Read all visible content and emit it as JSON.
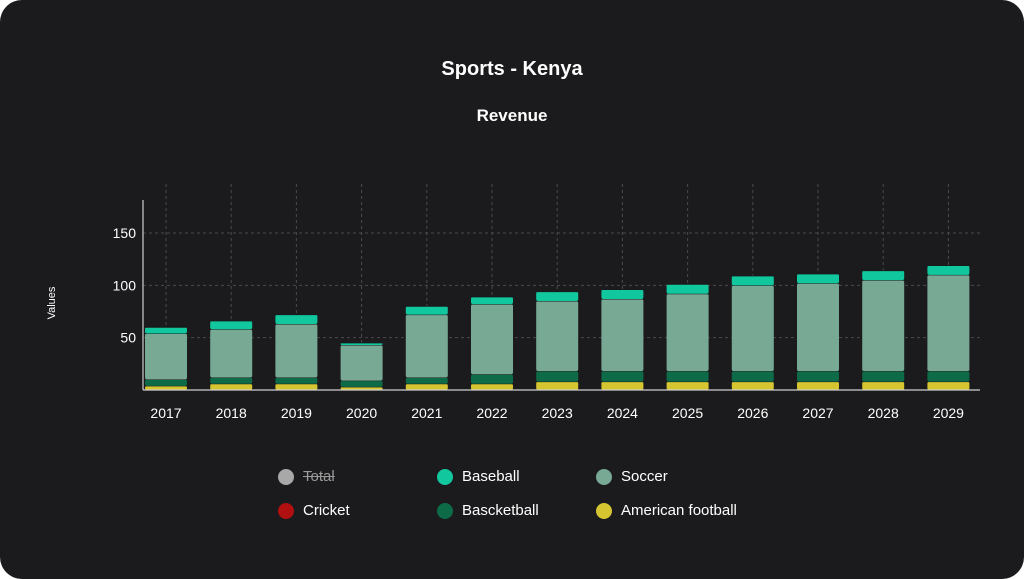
{
  "chart_data": {
    "type": "bar",
    "stacked": true,
    "title": "Sports - Kenya",
    "subtitle": "Revenue",
    "xlabel": "",
    "ylabel": "Values",
    "ylim": [
      0,
      180
    ],
    "yticks": [
      50,
      100,
      150
    ],
    "grid": true,
    "legend_position": "bottom",
    "categories": [
      "2017",
      "2018",
      "2019",
      "2020",
      "2021",
      "2022",
      "2023",
      "2024",
      "2025",
      "2026",
      "2027",
      "2028",
      "2029"
    ],
    "series": [
      {
        "name": "American football",
        "color": "#d4c531",
        "values": [
          4,
          6,
          6,
          3,
          6,
          6,
          8,
          8,
          8,
          8,
          8,
          8,
          8
        ]
      },
      {
        "name": "Cricket",
        "color": "#b01010",
        "values": [
          0,
          0,
          0,
          0,
          0,
          0,
          0,
          0,
          0,
          0,
          0,
          0,
          0
        ]
      },
      {
        "name": "Bascketball",
        "color": "#0d6b48",
        "values": [
          6,
          6,
          6,
          6,
          6,
          9,
          10,
          10,
          10,
          10,
          10,
          10,
          10
        ]
      },
      {
        "name": "Soccer",
        "color": "#77a994",
        "values": [
          44,
          46,
          51,
          34,
          60,
          67,
          67,
          69,
          74,
          82,
          84,
          87,
          92
        ]
      },
      {
        "name": "Baseball",
        "color": "#10c79e",
        "values": [
          6,
          8,
          9,
          2,
          8,
          7,
          9,
          9,
          9,
          9,
          9,
          9,
          9
        ]
      }
    ],
    "legend": [
      {
        "name": "Total",
        "color": "#a8a8a8",
        "hidden": true
      },
      {
        "name": "Baseball",
        "color": "#10c79e",
        "hidden": false
      },
      {
        "name": "Soccer",
        "color": "#77a994",
        "hidden": false
      },
      {
        "name": "Cricket",
        "color": "#b01010",
        "hidden": false
      },
      {
        "name": "Bascketball",
        "color": "#0d6b48",
        "hidden": false
      },
      {
        "name": "American football",
        "color": "#d4c531",
        "hidden": false
      }
    ]
  }
}
